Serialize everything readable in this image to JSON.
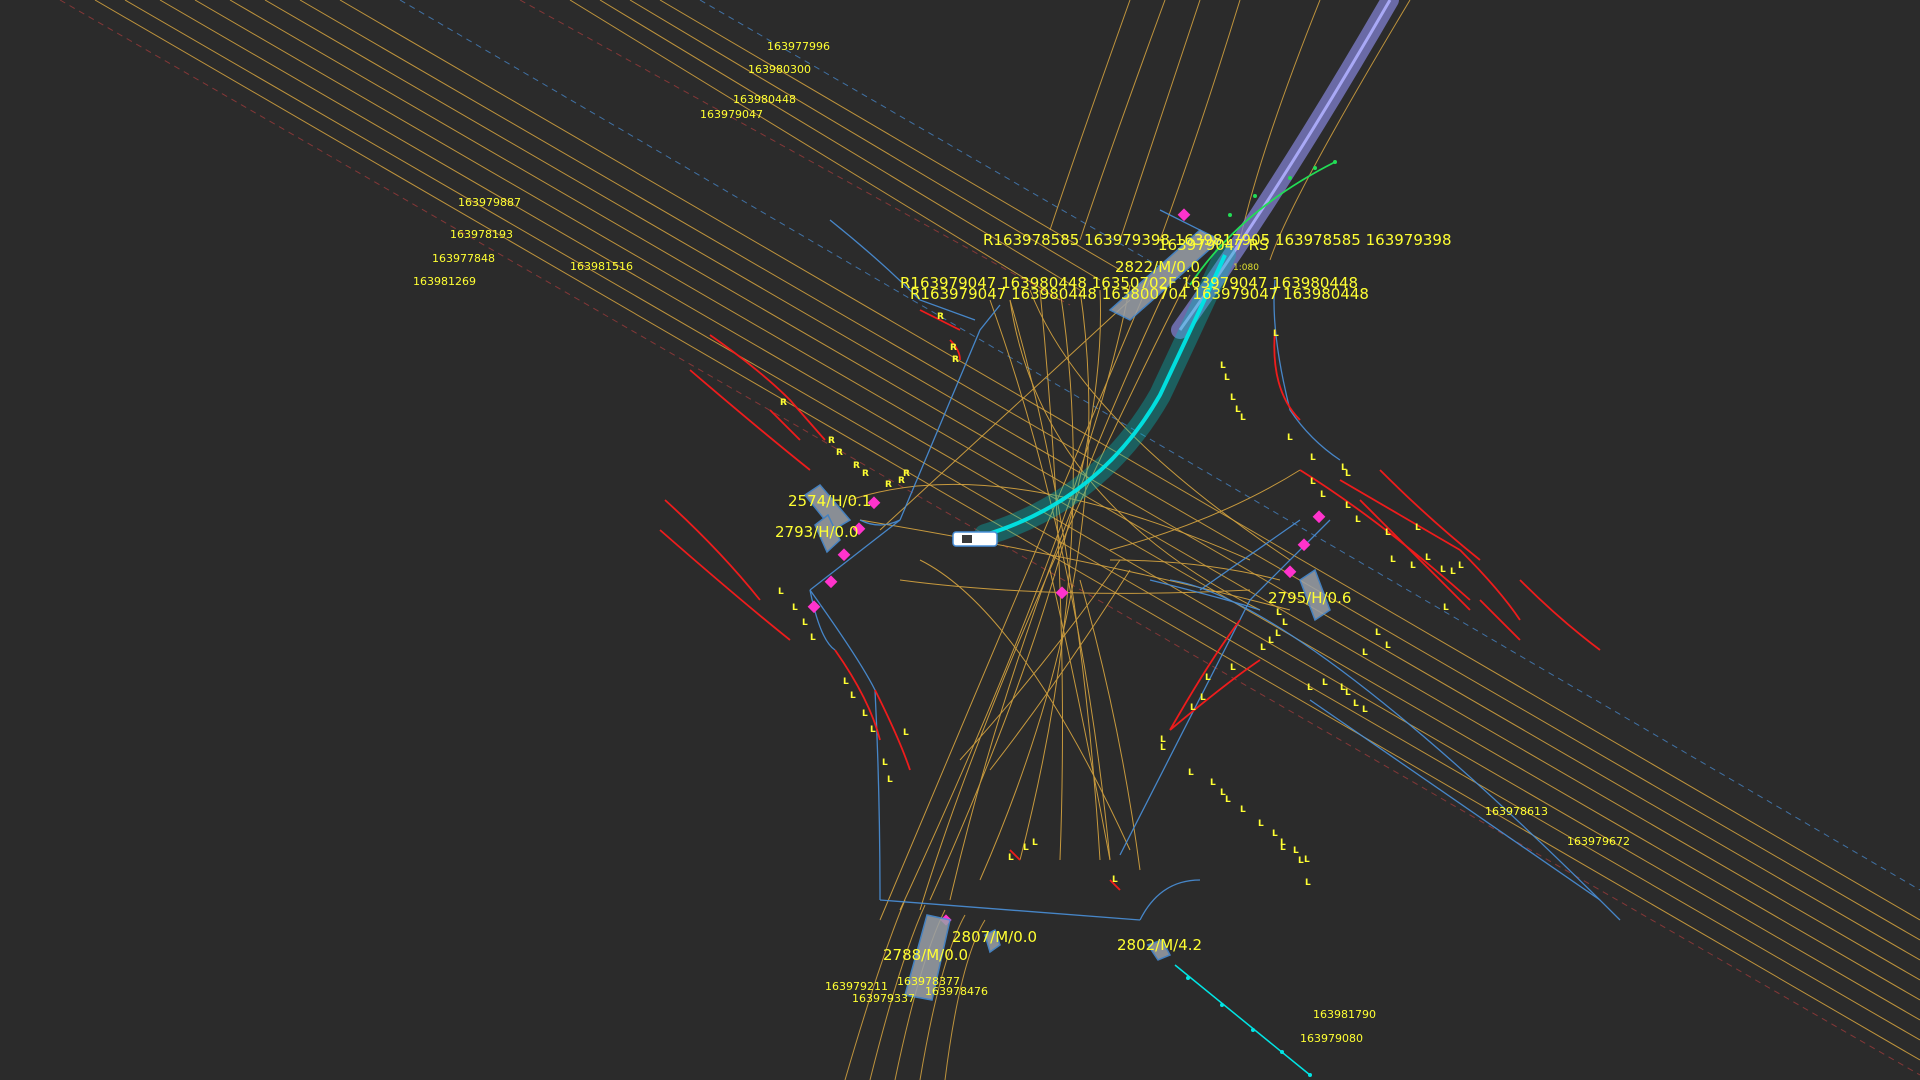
{
  "colors": {
    "background": "#2b2b2b",
    "lane_line": "#d8a640",
    "lane_boundary": "#4a90d9",
    "curb": "#ee1c1c",
    "label": "#ffff33",
    "crosswalk_marker": "#ff33cc",
    "ego_trajectory": "#00e5e5",
    "reference_path": "#8080d0",
    "green_path": "#22dd55",
    "obstacle_fill": "#9aa0a8"
  },
  "lane_ids": [
    "163977996",
    "163980300",
    "163980448",
    "163979047",
    "163979887",
    "163978193",
    "163977848",
    "163981269",
    "163981516",
    "163978613",
    "163979672",
    "163981790",
    "163979080",
    "163979211",
    "163979337",
    "163978377",
    "163978476"
  ],
  "route_labels": [
    "R163978585 163979398 1639817905 163978585 163979398",
    "163979047 RS",
    "R163979047 163980448 16350702F 163979047 163980448",
    "R163979047 163980448 163800704 163979047 163980448"
  ],
  "obstacles": [
    "2822/M/0.0",
    "2574/H/0.1",
    "2793/H/0.0",
    "2795/H/0.6",
    "2807/M/0.0",
    "2788/M/0.0",
    "2802/M/4.2"
  ],
  "boundary_marks": {
    "right": "R",
    "left": "L"
  },
  "scale_text": "1:080"
}
